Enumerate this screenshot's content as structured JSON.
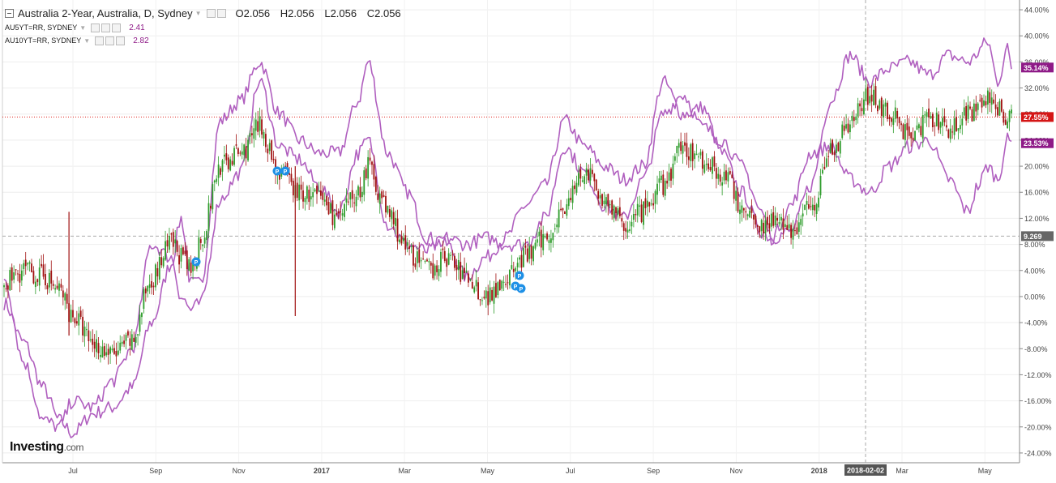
{
  "legend": {
    "main_title": "Australia 2-Year, Australia, D, Sydney",
    "ohlc": {
      "open": "O2.056",
      "high": "H2.056",
      "low": "L2.056",
      "close": "C2.056"
    },
    "overlays": [
      {
        "label": "AU5YT=RR, SYDNEY",
        "value": "2.41"
      },
      {
        "label": "AU10YT=RR, SYDNEY",
        "value": "2.82"
      }
    ]
  },
  "brand": {
    "name": "Investing",
    "suffix": ".com"
  },
  "colors": {
    "up": "#2e9c2b",
    "down": "#a01010",
    "overlay": "#b05fbf",
    "price_line": "#e0201a",
    "dashed": "#aaaaaa"
  },
  "chart_data": {
    "type": "candlestick",
    "y_unit": "percent change",
    "ylim": [
      -25.5,
      45.5
    ],
    "y_ticks": [
      "44.00%",
      "40.00%",
      "36.00%",
      "32.00%",
      "28.00%",
      "24.00%",
      "20.00%",
      "16.00%",
      "12.00%",
      "8.00%",
      "4.00%",
      "0.00%",
      "-4.00%",
      "-8.00%",
      "-12.00%",
      "-16.00%",
      "-20.00%",
      "-24.00%"
    ],
    "x_ticks": [
      "Jul",
      "Sep",
      "Nov",
      "2017",
      "Mar",
      "May",
      "Jul",
      "Sep",
      "Nov",
      "2018",
      "Mar",
      "May"
    ],
    "crosshair_date": "2018-02-02",
    "badges": [
      {
        "label": "35.14%",
        "value": 35.14,
        "color": "#8e1a87"
      },
      {
        "label": "27.55%",
        "value": 27.55,
        "color": "#d41515"
      },
      {
        "label": "23.53%",
        "value": 23.53,
        "color": "#8e1a87"
      },
      {
        "label": "9.269",
        "value": 9.269,
        "color": "#666666"
      }
    ],
    "series": [
      {
        "name": "Australia 2-Year",
        "kind": "candles",
        "anchors": [
          [
            0,
            2
          ],
          [
            10,
            4
          ],
          [
            20,
            3
          ],
          [
            28,
            1
          ],
          [
            35,
            -3
          ],
          [
            45,
            -7
          ],
          [
            55,
            -9
          ],
          [
            65,
            -7
          ],
          [
            75,
            3
          ],
          [
            85,
            8
          ],
          [
            95,
            4
          ],
          [
            100,
            9
          ],
          [
            110,
            20
          ],
          [
            120,
            22
          ],
          [
            130,
            26
          ],
          [
            140,
            19
          ],
          [
            150,
            16
          ],
          [
            160,
            15
          ],
          [
            170,
            12
          ],
          [
            180,
            16
          ],
          [
            185,
            20
          ],
          [
            195,
            13
          ],
          [
            205,
            7
          ],
          [
            215,
            4
          ],
          [
            225,
            6
          ],
          [
            235,
            3
          ],
          [
            245,
            0
          ],
          [
            255,
            3
          ],
          [
            265,
            6
          ],
          [
            275,
            9
          ],
          [
            285,
            14
          ],
          [
            295,
            19
          ],
          [
            305,
            15
          ],
          [
            315,
            11
          ],
          [
            325,
            13
          ],
          [
            335,
            17
          ],
          [
            345,
            23
          ],
          [
            355,
            21
          ],
          [
            365,
            19
          ],
          [
            375,
            14
          ],
          [
            385,
            11
          ],
          [
            390,
            12
          ],
          [
            400,
            10
          ],
          [
            410,
            14
          ],
          [
            420,
            22
          ],
          [
            430,
            27
          ],
          [
            440,
            31
          ],
          [
            450,
            28
          ],
          [
            460,
            25
          ],
          [
            470,
            27
          ],
          [
            480,
            26
          ],
          [
            490,
            28
          ],
          [
            500,
            30
          ],
          [
            510,
            28
          ],
          [
            512,
            27.5
          ]
        ]
      },
      {
        "name": "AU5YT=RR",
        "kind": "line",
        "anchors": [
          [
            0,
            -1
          ],
          [
            10,
            -7
          ],
          [
            20,
            -14
          ],
          [
            28,
            -19
          ],
          [
            35,
            -21
          ],
          [
            45,
            -18
          ],
          [
            55,
            -17
          ],
          [
            65,
            -14
          ],
          [
            75,
            -4
          ],
          [
            85,
            5
          ],
          [
            90,
            12
          ],
          [
            95,
            2
          ],
          [
            100,
            2
          ],
          [
            110,
            27
          ],
          [
            120,
            30
          ],
          [
            130,
            36
          ],
          [
            140,
            28
          ],
          [
            150,
            24
          ],
          [
            160,
            22
          ],
          [
            170,
            22
          ],
          [
            180,
            30
          ],
          [
            185,
            36
          ],
          [
            195,
            22
          ],
          [
            205,
            16
          ],
          [
            215,
            9
          ],
          [
            225,
            8
          ],
          [
            235,
            3
          ],
          [
            245,
            6
          ],
          [
            255,
            9
          ],
          [
            265,
            14
          ],
          [
            275,
            17
          ],
          [
            285,
            27
          ],
          [
            295,
            23
          ],
          [
            305,
            20
          ],
          [
            315,
            18
          ],
          [
            325,
            20
          ],
          [
            335,
            33
          ],
          [
            345,
            28
          ],
          [
            355,
            29
          ],
          [
            365,
            22
          ],
          [
            375,
            16
          ],
          [
            385,
            10
          ],
          [
            390,
            9
          ],
          [
            400,
            10
          ],
          [
            410,
            17
          ],
          [
            420,
            30
          ],
          [
            430,
            37
          ],
          [
            440,
            33
          ],
          [
            450,
            35
          ],
          [
            460,
            36
          ],
          [
            470,
            34
          ],
          [
            480,
            37
          ],
          [
            490,
            36
          ],
          [
            500,
            39
          ],
          [
            505,
            33
          ],
          [
            510,
            38
          ],
          [
            512,
            35.14
          ]
        ]
      },
      {
        "name": "AU10YT=RR",
        "kind": "line",
        "anchors": [
          [
            0,
            3
          ],
          [
            10,
            -10
          ],
          [
            20,
            -19
          ],
          [
            28,
            -20
          ],
          [
            35,
            -16
          ],
          [
            45,
            -17
          ],
          [
            55,
            -13
          ],
          [
            65,
            -8
          ],
          [
            75,
            8
          ],
          [
            85,
            6
          ],
          [
            90,
            0
          ],
          [
            95,
            -2
          ],
          [
            100,
            -1
          ],
          [
            110,
            15
          ],
          [
            120,
            19
          ],
          [
            130,
            33
          ],
          [
            140,
            23
          ],
          [
            150,
            21
          ],
          [
            160,
            17
          ],
          [
            170,
            13
          ],
          [
            180,
            22
          ],
          [
            185,
            24
          ],
          [
            195,
            11
          ],
          [
            205,
            8
          ],
          [
            215,
            7
          ],
          [
            225,
            9
          ],
          [
            235,
            8
          ],
          [
            245,
            9
          ],
          [
            255,
            8
          ],
          [
            265,
            8
          ],
          [
            275,
            12
          ],
          [
            285,
            23
          ],
          [
            295,
            19
          ],
          [
            305,
            14
          ],
          [
            315,
            12
          ],
          [
            325,
            18
          ],
          [
            335,
            28
          ],
          [
            345,
            31
          ],
          [
            355,
            26
          ],
          [
            365,
            24
          ],
          [
            375,
            20
          ],
          [
            385,
            13
          ],
          [
            390,
            9
          ],
          [
            400,
            14
          ],
          [
            410,
            22
          ],
          [
            420,
            23
          ],
          [
            430,
            18
          ],
          [
            440,
            16
          ],
          [
            450,
            20
          ],
          [
            460,
            23
          ],
          [
            470,
            24
          ],
          [
            480,
            18
          ],
          [
            490,
            13
          ],
          [
            495,
            17
          ],
          [
            500,
            20
          ],
          [
            505,
            18
          ],
          [
            510,
            24
          ],
          [
            512,
            23.53
          ]
        ]
      }
    ]
  }
}
